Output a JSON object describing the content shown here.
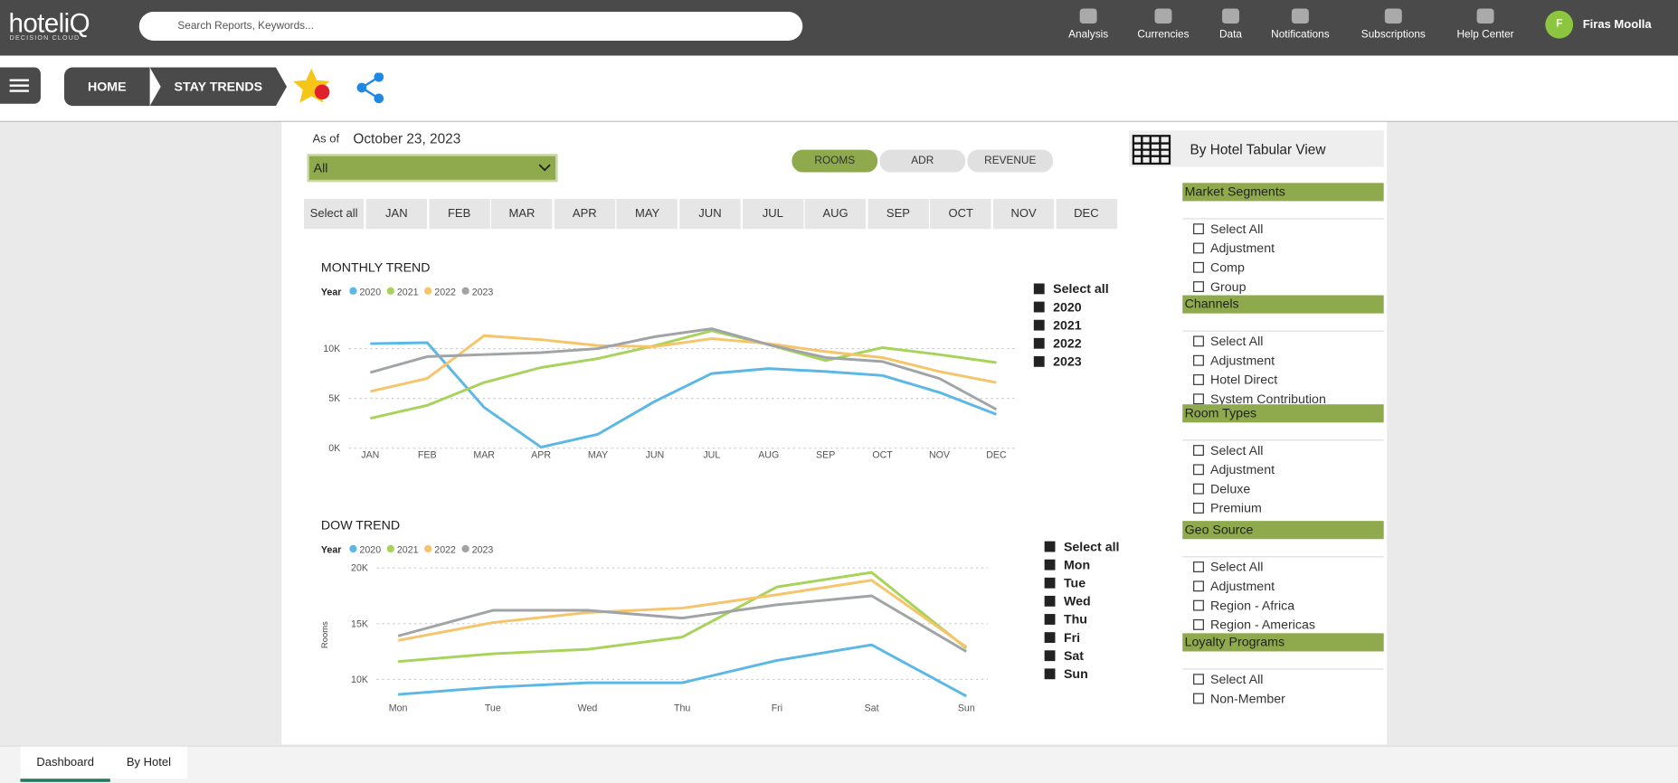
{
  "header": {
    "logo": "hoteliQ",
    "logo_sub": "DECISION CLOUD",
    "search_placeholder": "Search Reports, Keywords...",
    "nav": [
      "Analysis",
      "Currencies",
      "Data",
      "Notifications",
      "Subscriptions",
      "Help Center"
    ],
    "user_initial": "F",
    "user_name": "Firas Moolla"
  },
  "breadcrumbs": [
    "HOME",
    "STAY TRENDS"
  ],
  "filters": {
    "as_of_label": "As of",
    "as_of_date": "October 23, 2023",
    "dropdown": "All",
    "metrics": [
      "ROOMS",
      "ADR",
      "REVENUE"
    ],
    "months": [
      "Select all",
      "JAN",
      "FEB",
      "MAR",
      "APR",
      "MAY",
      "JUN",
      "JUL",
      "AUG",
      "SEP",
      "OCT",
      "NOV",
      "DEC"
    ]
  },
  "chart_data": [
    {
      "type": "line",
      "title": "MONTHLY TREND",
      "legend_title": "Year",
      "categories": [
        "JAN",
        "FEB",
        "MAR",
        "APR",
        "MAY",
        "JUN",
        "JUL",
        "AUG",
        "SEP",
        "OCT",
        "NOV",
        "DEC"
      ],
      "series": [
        {
          "name": "2020",
          "color": "#5bb8e6",
          "values": [
            10500,
            10600,
            4100,
            100,
            1400,
            4700,
            7500,
            8000,
            7700,
            7300,
            5600,
            3400
          ]
        },
        {
          "name": "2021",
          "color": "#a7d35a",
          "values": [
            3000,
            4300,
            6600,
            8100,
            9000,
            10300,
            11800,
            10400,
            8800,
            10100,
            9400,
            8600
          ]
        },
        {
          "name": "2022",
          "color": "#f6c46a",
          "values": [
            5700,
            7000,
            11300,
            10900,
            10300,
            10200,
            11000,
            10500,
            9700,
            9100,
            7700,
            6600
          ]
        },
        {
          "name": "2023",
          "color": "#a0a4a6",
          "values": [
            7600,
            9200,
            9400,
            9600,
            10000,
            11200,
            12000,
            10400,
            9100,
            8700,
            7000,
            3900
          ]
        }
      ],
      "ylim": [
        0,
        13000
      ],
      "yticks": [
        {
          "value": 0,
          "label": "0K"
        },
        {
          "value": 5000,
          "label": "5K"
        },
        {
          "value": 10000,
          "label": "10K"
        }
      ],
      "grid": true,
      "checklist": [
        "Select all",
        "2020",
        "2021",
        "2022",
        "2023"
      ]
    },
    {
      "type": "line",
      "title": "DOW TREND",
      "legend_title": "Year",
      "y_label": "Rooms",
      "categories": [
        "Mon",
        "Tue",
        "Wed",
        "Thu",
        "Fri",
        "Sat",
        "Sun"
      ],
      "series": [
        {
          "name": "2020",
          "color": "#5bb8e6",
          "values": [
            8650,
            9300,
            9700,
            9700,
            11700,
            13100,
            8500
          ]
        },
        {
          "name": "2021",
          "color": "#a7d35a",
          "values": [
            11600,
            12300,
            12700,
            13800,
            18300,
            19600,
            12800
          ]
        },
        {
          "name": "2022",
          "color": "#f6c46a",
          "values": [
            13500,
            15100,
            16000,
            16400,
            17600,
            18900,
            12900
          ]
        },
        {
          "name": "2023",
          "color": "#a0a4a6",
          "values": [
            13900,
            16200,
            16200,
            15500,
            16700,
            17500,
            12500
          ]
        }
      ],
      "ylim": [
        8000,
        20000
      ],
      "yticks": [
        {
          "value": 10000,
          "label": "10K"
        },
        {
          "value": 15000,
          "label": "15K"
        },
        {
          "value": 20000,
          "label": "20K"
        }
      ],
      "grid": true,
      "checklist": [
        "Select all",
        "Mon",
        "Tue",
        "Wed",
        "Thu",
        "Fri",
        "Sat",
        "Sun"
      ]
    }
  ],
  "side": {
    "tabular_view": "By Hotel Tabular View",
    "slicers": [
      {
        "title": "Market Segments",
        "items": [
          "Select All",
          "Adjustment",
          "Comp",
          "Group"
        ]
      },
      {
        "title": "Channels",
        "items": [
          "Select All",
          "Adjustment",
          "Hotel Direct",
          "System Contribution"
        ]
      },
      {
        "title": "Room Types",
        "items": [
          "Select All",
          "Adjustment",
          "Deluxe",
          "Premium"
        ]
      },
      {
        "title": "Geo Source",
        "items": [
          "Select All",
          "Adjustment",
          "Region - Africa",
          "Region - Americas"
        ]
      },
      {
        "title": "Loyalty Programs",
        "items": [
          "Select All",
          "Non-Member"
        ]
      }
    ]
  },
  "tabs": [
    "Dashboard",
    "By Hotel"
  ]
}
